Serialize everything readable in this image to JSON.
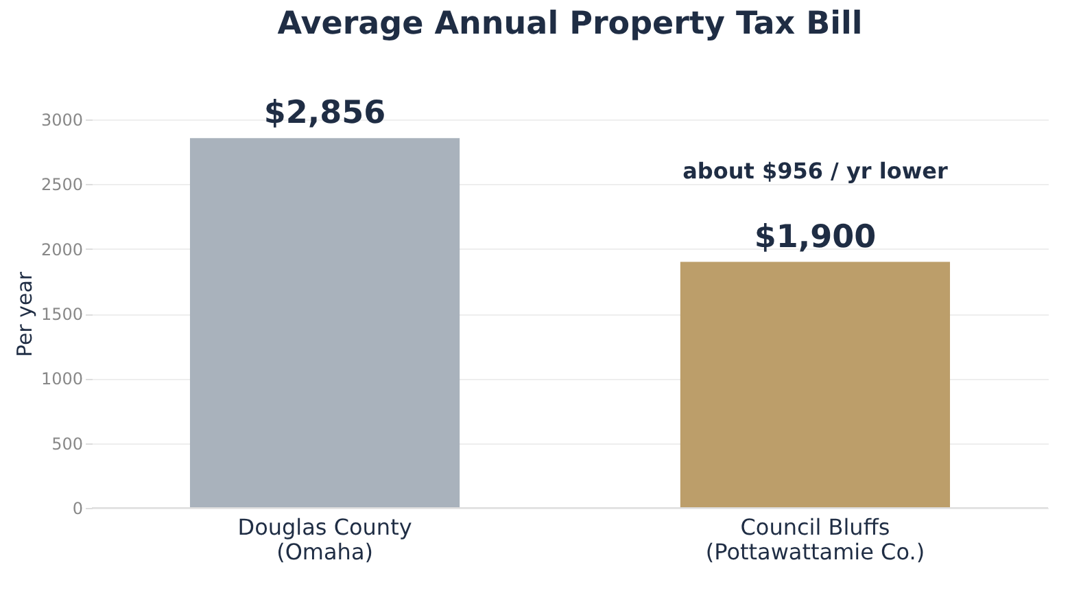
{
  "chart_data": {
    "type": "bar",
    "title": "Average Annual Property Tax Bill",
    "ylabel": "Per year",
    "categories": [
      "Douglas County\n(Omaha)",
      "Council Bluffs\n(Pottawattamie Co.)"
    ],
    "values": [
      2856,
      1900
    ],
    "colors": [
      "#a9b2bc",
      "#bc9e6a"
    ],
    "value_labels": [
      "$2,856",
      "$1,900"
    ],
    "annotations": [
      "about $956 / yr lower"
    ],
    "ylim": [
      0,
      3000
    ],
    "yticks": [
      0,
      500,
      1000,
      1500,
      2000,
      2500,
      3000
    ],
    "grid": "y"
  }
}
